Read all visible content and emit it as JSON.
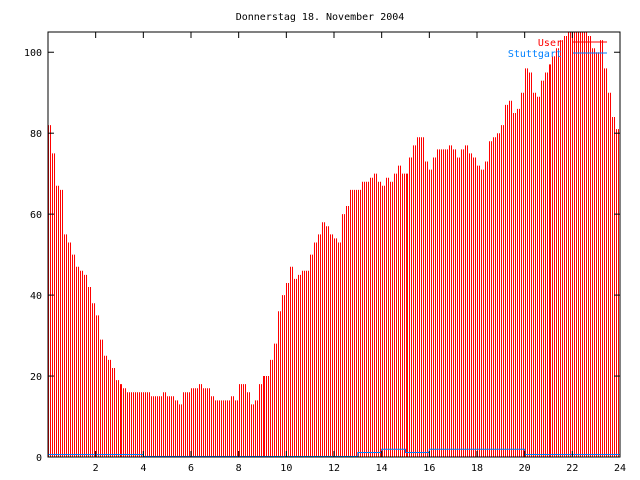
{
  "chart_data": {
    "type": "bar",
    "title": "Donnerstag 18. November 2004",
    "xlabel": "",
    "ylabel": "",
    "xlim": [
      0,
      24
    ],
    "ylim": [
      0,
      105
    ],
    "x_interval_hours": 0.1666667,
    "xticks": [
      "2",
      "4",
      "6",
      "8",
      "10",
      "12",
      "14",
      "16",
      "18",
      "20",
      "22",
      "24"
    ],
    "yticks": [
      "0",
      "20",
      "40",
      "60",
      "80",
      "100"
    ],
    "legend_position": "top-right",
    "series": [
      {
        "name": "User",
        "color": "#ff0000",
        "style": "impulses",
        "values": [
          82,
          75,
          67,
          66,
          55,
          53,
          50,
          47,
          46,
          45,
          42,
          38,
          35,
          29,
          25,
          24,
          22,
          19,
          18,
          17,
          16,
          16,
          16,
          16,
          16,
          16,
          15,
          15,
          15,
          16,
          15,
          15,
          14,
          13,
          16,
          16,
          17,
          17,
          18,
          17,
          17,
          15,
          14,
          14,
          14,
          14,
          15,
          14,
          18,
          18,
          16,
          13,
          14,
          18,
          20,
          20,
          24,
          28,
          36,
          40,
          43,
          47,
          44,
          45,
          46,
          46,
          50,
          53,
          55,
          58,
          57,
          55,
          54,
          53,
          60,
          62,
          66,
          66,
          66,
          68,
          68,
          69,
          70,
          68,
          67,
          69,
          68,
          70,
          72,
          70,
          70,
          74,
          77,
          79,
          79,
          73,
          71,
          74,
          76,
          76,
          76,
          77,
          76,
          74,
          76,
          77,
          75,
          74,
          72,
          71,
          73,
          78,
          79,
          80,
          82,
          87,
          88,
          85,
          86,
          90,
          96,
          95,
          90,
          89,
          93,
          95,
          97,
          99,
          101,
          103,
          104,
          105,
          105,
          105,
          105,
          105,
          104,
          101,
          100,
          103,
          96,
          90,
          84,
          81
        ]
      },
      {
        "name": "Stuttgart",
        "color": "#0080ff",
        "style": "steps",
        "hourly_values": [
          0.5,
          0.5,
          0.5,
          0.5,
          0,
          0,
          0,
          0,
          0,
          0,
          0,
          0,
          0,
          1,
          1.8,
          1,
          1.8,
          1.8,
          1.8,
          1.8,
          0.5,
          0.5,
          0.5,
          0.5
        ]
      }
    ]
  }
}
